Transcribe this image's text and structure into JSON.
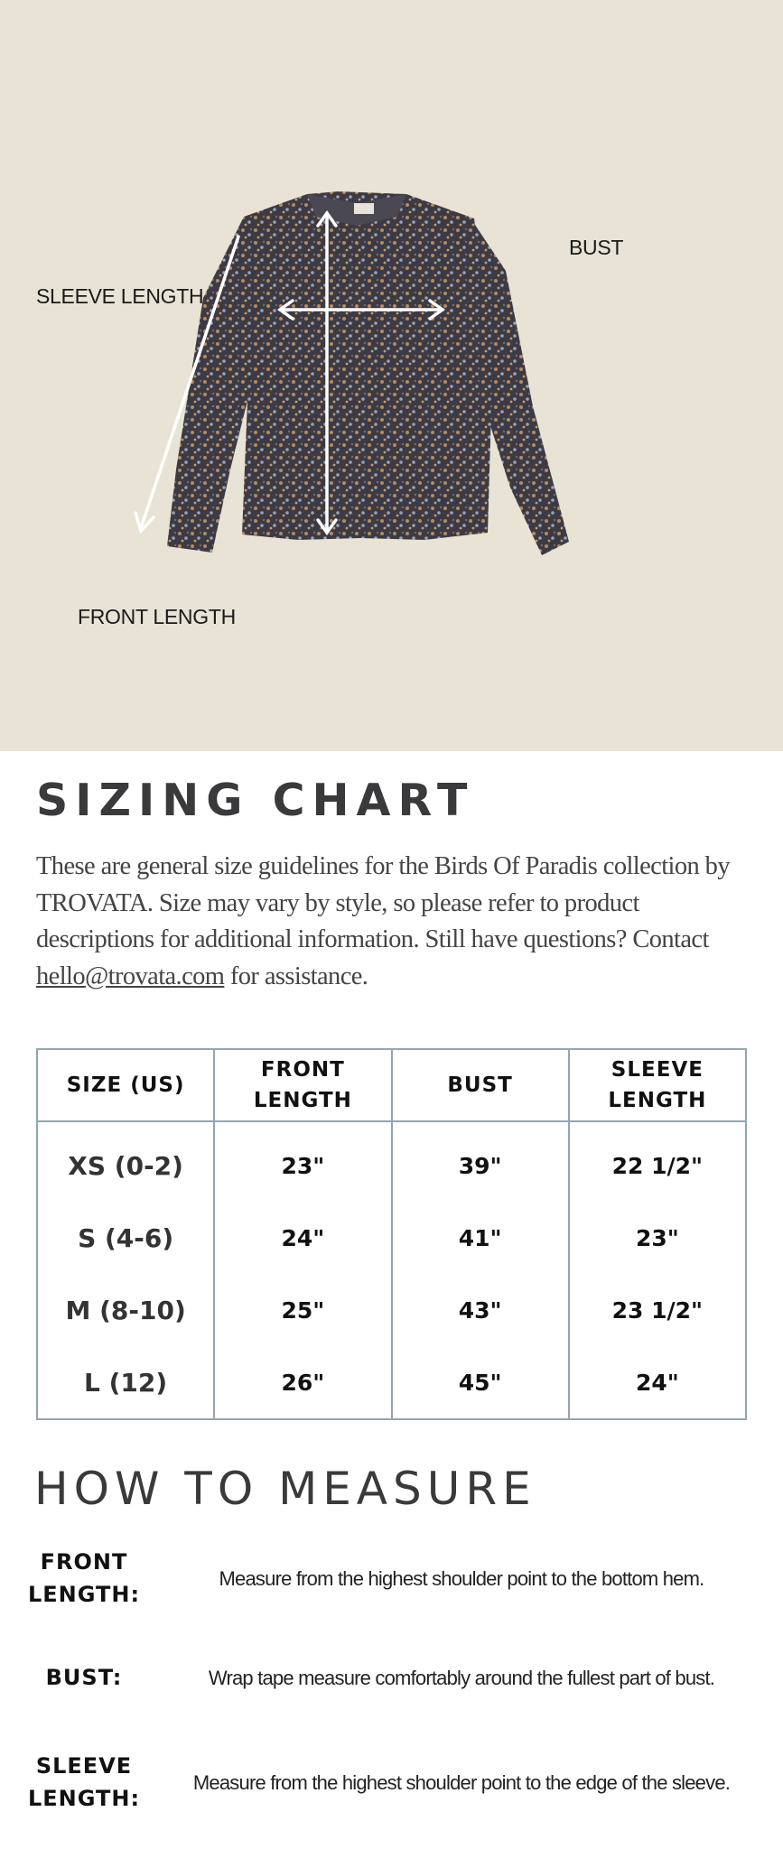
{
  "hero": {
    "labels": {
      "sleeve_length": "SLEEVE LENGTH",
      "bust": "BUST",
      "front_length": "FRONT LENGTH"
    },
    "background_color": "#e9e3d6"
  },
  "sizing": {
    "title": "SIZING CHART",
    "intro_text": "These are general size guidelines for the Birds Of Paradis collection by TROVATA. Size may vary by style, so please refer to product descriptions for additional information. Still have questions? Contact ",
    "email": "hello@trovata.com",
    "intro_end": " for assistance."
  },
  "table": {
    "headers": [
      "SIZE (US)",
      "FRONT LENGTH",
      "BUST",
      "SLEEVE LENGTH"
    ],
    "rows": [
      [
        "XS (0-2)",
        "23\"",
        "39\"",
        "22 1/2\""
      ],
      [
        "S (4-6)",
        "24\"",
        "41\"",
        "23\""
      ],
      [
        "M (8-10)",
        "25\"",
        "43\"",
        "23 1/2\""
      ],
      [
        "L (12)",
        "26\"",
        "45\"",
        "24\""
      ]
    ],
    "border_color": "#93a6b0"
  },
  "measure": {
    "title": "HOW TO MEASURE",
    "items": [
      {
        "label": "FRONT LENGTH:",
        "desc": "Measure from the highest shoulder point to the bottom hem."
      },
      {
        "label": "BUST:",
        "desc": "Wrap tape measure comfortably around the fullest part of bust."
      },
      {
        "label": "SLEEVE LENGTH:",
        "desc": "Measure from the highest shoulder point to the edge of the sleeve."
      }
    ]
  }
}
